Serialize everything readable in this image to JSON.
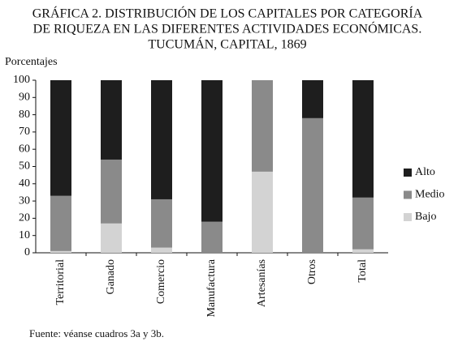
{
  "chart_data": {
    "type": "stacked_bar",
    "title": [
      "GRÁFICA 2. DISTRIBUCIÓN DE LOS CAPITALES POR CATEGORÍA",
      "DE RIQUEZA EN LAS DIFERENTES ACTIVIDADES ECONÓMICAS.",
      "TUCUMÁN, CAPITAL, 1869"
    ],
    "y_label": "Porcentajes",
    "note": "Fuente: véanse cuadros 3a y 3b.",
    "categories": [
      "Territorial",
      "Ganado",
      "Comercio",
      "Manufactura",
      "Artesanías",
      "Otros",
      "Total"
    ],
    "series": [
      {
        "name": "Bajo",
        "color": "#d3d3d3",
        "values": [
          1,
          17,
          3,
          0,
          47,
          0,
          2
        ]
      },
      {
        "name": "Medio",
        "color": "#8a8a8a",
        "values": [
          32,
          37,
          28,
          18,
          53,
          78,
          30
        ]
      },
      {
        "name": "Alto",
        "color": "#1e1e1e",
        "values": [
          67,
          46,
          69,
          82,
          0,
          22,
          68
        ]
      }
    ],
    "ylim": [
      0,
      100
    ],
    "yticks": [
      0,
      10,
      20,
      30,
      40,
      50,
      60,
      70,
      80,
      90,
      100
    ]
  }
}
